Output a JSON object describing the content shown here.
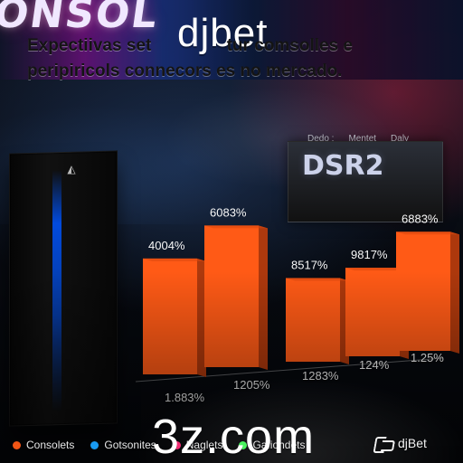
{
  "background": {
    "neon_sign_text": "ONSOL"
  },
  "overlay": {
    "brand": "djbet",
    "domain": "3z.com",
    "corner_brand": "djBet"
  },
  "headline": {
    "line1": "Expectiivas set",
    "line1b": "tur comsolles e",
    "line2": "peripiricols connecors es no mercado."
  },
  "scene": {
    "screen_text": "DSR2",
    "top_legend": [
      "Dedo :",
      "Mentet",
      "Daly"
    ]
  },
  "chart_data": {
    "type": "bar",
    "categories": [
      "",
      "",
      "",
      "",
      ""
    ],
    "values": [
      0.72,
      0.88,
      0.52,
      0.55,
      0.74
    ],
    "data_labels_top": [
      "4004%",
      "6083%",
      "8517%",
      "9817%",
      "6883%"
    ],
    "data_labels_bottom": [
      "1.883%",
      "1205%",
      "1283%",
      "124%",
      "1.25%"
    ],
    "ylim": [
      0,
      1
    ]
  },
  "legend_bottom": [
    {
      "label": "Consolets",
      "color": "#ff5a16"
    },
    {
      "label": "Gotsonites",
      "color": "#1aa3ff"
    },
    {
      "label": "Naglets",
      "color": "#ff2f7a"
    },
    {
      "label": "Gafiohdets",
      "color": "#4cff62"
    }
  ],
  "colors": {
    "bar": "#ff5a16",
    "bar_shade": "#d9470f",
    "bar_side": "#b63b0d"
  }
}
